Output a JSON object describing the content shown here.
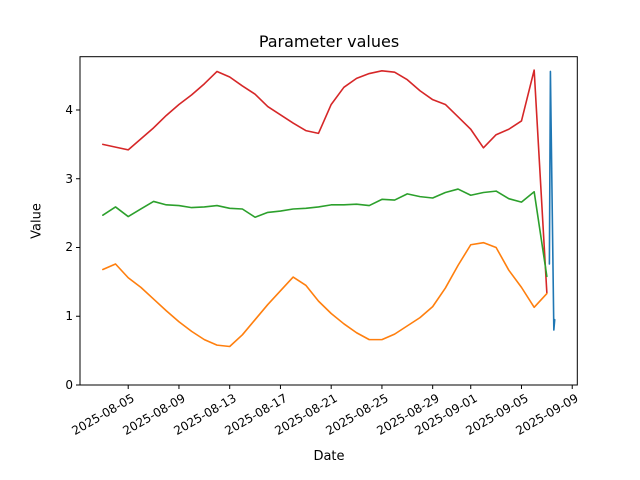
{
  "figure": {
    "background": "#ffffff",
    "frame_color": "#000000"
  },
  "chart_data": {
    "type": "line",
    "title": "Parameter values",
    "xlabel": "Date",
    "ylabel": "Value",
    "grid": false,
    "legend": "none",
    "x_unit": "days since 2025-08-05",
    "xlim": [
      -3.8,
      35.4
    ],
    "ylim": [
      0,
      4.775
    ],
    "y_ticks": [
      {
        "value": 0,
        "label": "0"
      },
      {
        "value": 1,
        "label": "1"
      },
      {
        "value": 2,
        "label": "2"
      },
      {
        "value": 3,
        "label": "3"
      },
      {
        "value": 4,
        "label": "4"
      }
    ],
    "x_ticks": [
      {
        "offset": 0,
        "label": "2025-08-05"
      },
      {
        "offset": 4,
        "label": "2025-08-09"
      },
      {
        "offset": 8,
        "label": "2025-08-13"
      },
      {
        "offset": 12,
        "label": "2025-08-17"
      },
      {
        "offset": 16,
        "label": "2025-08-21"
      },
      {
        "offset": 20,
        "label": "2025-08-25"
      },
      {
        "offset": 24,
        "label": "2025-08-29"
      },
      {
        "offset": 27,
        "label": "2025-09-01"
      },
      {
        "offset": 31,
        "label": "2025-09-05"
      },
      {
        "offset": 35,
        "label": "2025-09-09"
      }
    ],
    "series": [
      {
        "name": "red-series",
        "color": "#d62728",
        "start_date": "2025-08-03",
        "points": [
          [
            -2,
            3.5
          ],
          [
            -1,
            3.46
          ],
          [
            0,
            3.42
          ],
          [
            1,
            3.58
          ],
          [
            2,
            3.74
          ],
          [
            3,
            3.92
          ],
          [
            4,
            4.08
          ],
          [
            5,
            4.22
          ],
          [
            6,
            4.38
          ],
          [
            7,
            4.56
          ],
          [
            8,
            4.48
          ],
          [
            9,
            4.35
          ],
          [
            10,
            4.23
          ],
          [
            11,
            4.05
          ],
          [
            12,
            3.93
          ],
          [
            13,
            3.81
          ],
          [
            14,
            3.7
          ],
          [
            15,
            3.66
          ],
          [
            16,
            4.08
          ],
          [
            17,
            4.33
          ],
          [
            18,
            4.46
          ],
          [
            19,
            4.53
          ],
          [
            20,
            4.57
          ],
          [
            21,
            4.55
          ],
          [
            22,
            4.44
          ],
          [
            23,
            4.28
          ],
          [
            24,
            4.15
          ],
          [
            25,
            4.08
          ],
          [
            26,
            3.9
          ],
          [
            27,
            3.72
          ],
          [
            28,
            3.45
          ],
          [
            29,
            3.64
          ],
          [
            30,
            3.72
          ],
          [
            31,
            3.84
          ],
          [
            32,
            4.58
          ],
          [
            33,
            1.34
          ]
        ]
      },
      {
        "name": "green-series",
        "color": "#2ca02c",
        "start_date": "2025-08-03",
        "points": [
          [
            -2,
            2.47
          ],
          [
            -1,
            2.59
          ],
          [
            0,
            2.45
          ],
          [
            1,
            2.56
          ],
          [
            2,
            2.67
          ],
          [
            3,
            2.62
          ],
          [
            4,
            2.61
          ],
          [
            5,
            2.58
          ],
          [
            6,
            2.59
          ],
          [
            7,
            2.61
          ],
          [
            8,
            2.57
          ],
          [
            9,
            2.56
          ],
          [
            10,
            2.44
          ],
          [
            11,
            2.51
          ],
          [
            12,
            2.53
          ],
          [
            13,
            2.56
          ],
          [
            14,
            2.57
          ],
          [
            15,
            2.59
          ],
          [
            16,
            2.62
          ],
          [
            17,
            2.62
          ],
          [
            18,
            2.63
          ],
          [
            19,
            2.61
          ],
          [
            20,
            2.7
          ],
          [
            21,
            2.69
          ],
          [
            22,
            2.78
          ],
          [
            23,
            2.74
          ],
          [
            24,
            2.72
          ],
          [
            25,
            2.8
          ],
          [
            26,
            2.85
          ],
          [
            27,
            2.76
          ],
          [
            28,
            2.8
          ],
          [
            29,
            2.82
          ],
          [
            30,
            2.71
          ],
          [
            31,
            2.66
          ],
          [
            32,
            2.81
          ],
          [
            33,
            1.58
          ]
        ]
      },
      {
        "name": "orange-series",
        "color": "#ff7f0e",
        "start_date": "2025-08-03",
        "points": [
          [
            -2,
            1.68
          ],
          [
            -1,
            1.76
          ],
          [
            0,
            1.56
          ],
          [
            1,
            1.42
          ],
          [
            2,
            1.25
          ],
          [
            3,
            1.08
          ],
          [
            4,
            0.92
          ],
          [
            5,
            0.78
          ],
          [
            6,
            0.66
          ],
          [
            7,
            0.58
          ],
          [
            8,
            0.56
          ],
          [
            9,
            0.73
          ],
          [
            10,
            0.95
          ],
          [
            11,
            1.17
          ],
          [
            12,
            1.37
          ],
          [
            13,
            1.57
          ],
          [
            14,
            1.45
          ],
          [
            15,
            1.22
          ],
          [
            16,
            1.04
          ],
          [
            17,
            0.89
          ],
          [
            18,
            0.76
          ],
          [
            19,
            0.66
          ],
          [
            20,
            0.66
          ],
          [
            21,
            0.74
          ],
          [
            22,
            0.86
          ],
          [
            23,
            0.98
          ],
          [
            24,
            1.14
          ],
          [
            25,
            1.41
          ],
          [
            26,
            1.74
          ],
          [
            27,
            2.04
          ],
          [
            28,
            2.07
          ],
          [
            29,
            2.0
          ],
          [
            30,
            1.67
          ],
          [
            31,
            1.42
          ],
          [
            32,
            1.13
          ],
          [
            33,
            1.33
          ]
        ]
      },
      {
        "name": "blue-series",
        "color": "#1f77b4",
        "start_date": "2025-09-07",
        "points": [
          [
            33.2,
            1.76
          ],
          [
            33.28,
            4.56
          ],
          [
            33.55,
            0.8
          ],
          [
            33.62,
            0.95
          ]
        ]
      }
    ]
  }
}
